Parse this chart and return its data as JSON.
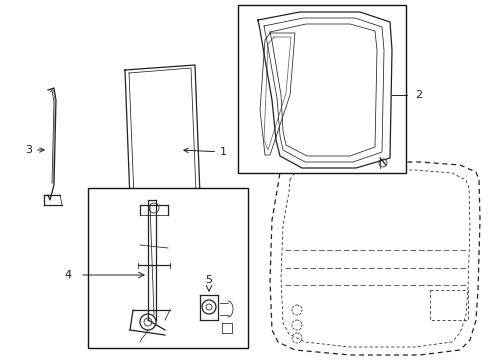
{
  "bg_color": "#ffffff",
  "line_color": "#222222",
  "box_color": "#111111",
  "label_color": "#000000",
  "fig_w": 4.89,
  "fig_h": 3.6,
  "dpi": 100
}
